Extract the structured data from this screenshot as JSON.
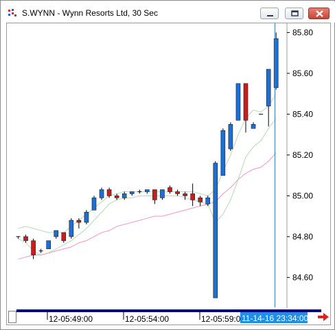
{
  "window": {
    "title": "S.WYNN - Wynn Resorts Ltd, 30 Sec",
    "icon": "app-chart-icon",
    "controls": [
      "minimize-icon",
      "restore-icon",
      "close-icon"
    ]
  },
  "colors": {
    "up": "#1b6fd6",
    "down": "#c81e1e",
    "doji": "#000000",
    "band": "#bcdcbc",
    "ma": "#f0a0c4",
    "cursor": "#3a7fc4",
    "timebar": "#000080",
    "time_badge_bg": "#1e8ee6",
    "time_badge_text": "#ffffff",
    "scroll_arrow": "#e41f1f"
  },
  "chart_data": {
    "type": "candlestick",
    "ylim": [
      84.5,
      85.85
    ],
    "yticks": [
      "85.80",
      "85.60",
      "85.40",
      "85.20",
      "85.00",
      "84.80",
      "84.60"
    ],
    "x_labels": [
      "12-05:49:00",
      "12-05:54:00",
      "12-05:59:00"
    ],
    "cursor_time": "11-14-16 23:34:00",
    "candles": [
      {
        "o": 84.8,
        "h": 84.8,
        "l": 84.79,
        "c": 84.8
      },
      {
        "o": 84.8,
        "h": 84.81,
        "l": 84.77,
        "c": 84.78
      },
      {
        "o": 84.78,
        "h": 84.79,
        "l": 84.69,
        "c": 84.71
      },
      {
        "o": 84.73,
        "h": 84.74,
        "l": 84.72,
        "c": 84.73
      },
      {
        "o": 84.74,
        "h": 84.78,
        "l": 84.74,
        "c": 84.78
      },
      {
        "o": 84.8,
        "h": 84.83,
        "l": 84.79,
        "c": 84.83
      },
      {
        "o": 84.82,
        "h": 84.82,
        "l": 84.77,
        "c": 84.78
      },
      {
        "o": 84.8,
        "h": 84.89,
        "l": 84.79,
        "c": 84.88
      },
      {
        "o": 84.88,
        "h": 84.89,
        "l": 84.84,
        "c": 84.87
      },
      {
        "o": 84.87,
        "h": 84.93,
        "l": 84.86,
        "c": 84.92
      },
      {
        "o": 84.93,
        "h": 85.0,
        "l": 84.93,
        "c": 84.99
      },
      {
        "o": 84.99,
        "h": 85.04,
        "l": 84.98,
        "c": 85.03
      },
      {
        "o": 85.03,
        "h": 85.04,
        "l": 84.99,
        "c": 85.0
      },
      {
        "o": 85.0,
        "h": 85.01,
        "l": 84.98,
        "c": 84.99
      },
      {
        "o": 84.99,
        "h": 85.02,
        "l": 84.98,
        "c": 85.01
      },
      {
        "o": 85.01,
        "h": 85.02,
        "l": 85.0,
        "c": 85.02
      },
      {
        "o": 85.02,
        "h": 85.03,
        "l": 85.01,
        "c": 85.02
      },
      {
        "o": 85.02,
        "h": 85.03,
        "l": 85.01,
        "c": 85.03
      },
      {
        "o": 85.03,
        "h": 85.03,
        "l": 84.96,
        "c": 84.98
      },
      {
        "o": 84.99,
        "h": 85.03,
        "l": 84.98,
        "c": 85.03
      },
      {
        "o": 85.04,
        "h": 85.05,
        "l": 85.01,
        "c": 85.02
      },
      {
        "o": 85.02,
        "h": 85.03,
        "l": 85.0,
        "c": 85.01
      },
      {
        "o": 85.01,
        "h": 85.02,
        "l": 84.98,
        "c": 85.0
      },
      {
        "o": 85.01,
        "h": 85.06,
        "l": 84.95,
        "c": 84.98
      },
      {
        "o": 84.99,
        "h": 85.0,
        "l": 84.95,
        "c": 84.97
      },
      {
        "o": 84.96,
        "h": 85.0,
        "l": 84.95,
        "c": 84.99
      },
      {
        "o": 84.5,
        "h": 85.17,
        "l": 84.5,
        "c": 85.16
      },
      {
        "o": 85.1,
        "h": 85.33,
        "l": 85.1,
        "c": 85.32
      },
      {
        "o": 85.23,
        "h": 85.36,
        "l": 85.22,
        "c": 85.35
      },
      {
        "o": 85.37,
        "h": 85.55,
        "l": 85.37,
        "c": 85.55
      },
      {
        "o": 85.55,
        "h": 85.55,
        "l": 85.31,
        "c": 85.37
      },
      {
        "o": 85.33,
        "h": 85.36,
        "l": 85.33,
        "c": 85.35
      },
      {
        "o": 85.4,
        "h": 85.4,
        "l": 85.4,
        "c": 85.4
      },
      {
        "o": 85.44,
        "h": 85.62,
        "l": 85.34,
        "c": 85.62
      },
      {
        "o": 85.53,
        "h": 85.8,
        "l": 85.52,
        "c": 85.77
      }
    ],
    "band_upper": [
      84.84,
      84.85,
      84.84,
      84.83,
      84.82,
      84.82,
      84.82,
      84.85,
      84.88,
      84.91,
      84.94,
      84.97,
      85.0,
      85.01,
      85.02,
      85.02,
      85.02,
      85.02,
      85.02,
      85.02,
      85.02,
      85.02,
      85.02,
      85.02,
      85.01,
      85.0,
      85.03,
      85.12,
      85.2,
      85.3,
      85.38,
      85.42,
      85.41,
      85.44,
      85.5
    ],
    "band_lower": [
      84.79,
      84.77,
      84.73,
      84.71,
      84.72,
      84.74,
      84.76,
      84.78,
      84.81,
      84.84,
      84.88,
      84.92,
      84.96,
      84.98,
      84.99,
      84.99,
      85.0,
      85.0,
      85.0,
      85.0,
      85.0,
      85.0,
      84.99,
      84.98,
      84.97,
      84.96,
      84.87,
      84.91,
      84.98,
      85.08,
      85.19,
      85.24,
      85.27,
      85.33,
      85.38
    ],
    "ma": [
      84.69,
      84.7,
      84.71,
      84.71,
      84.72,
      84.73,
      84.74,
      84.75,
      84.77,
      84.78,
      84.8,
      84.82,
      84.83,
      84.85,
      84.86,
      84.87,
      84.88,
      84.89,
      84.9,
      84.9,
      84.91,
      84.92,
      84.93,
      84.94,
      84.95,
      84.96,
      84.97,
      85.01,
      85.04,
      85.08,
      85.11,
      85.13,
      85.14,
      85.17,
      85.21
    ]
  }
}
